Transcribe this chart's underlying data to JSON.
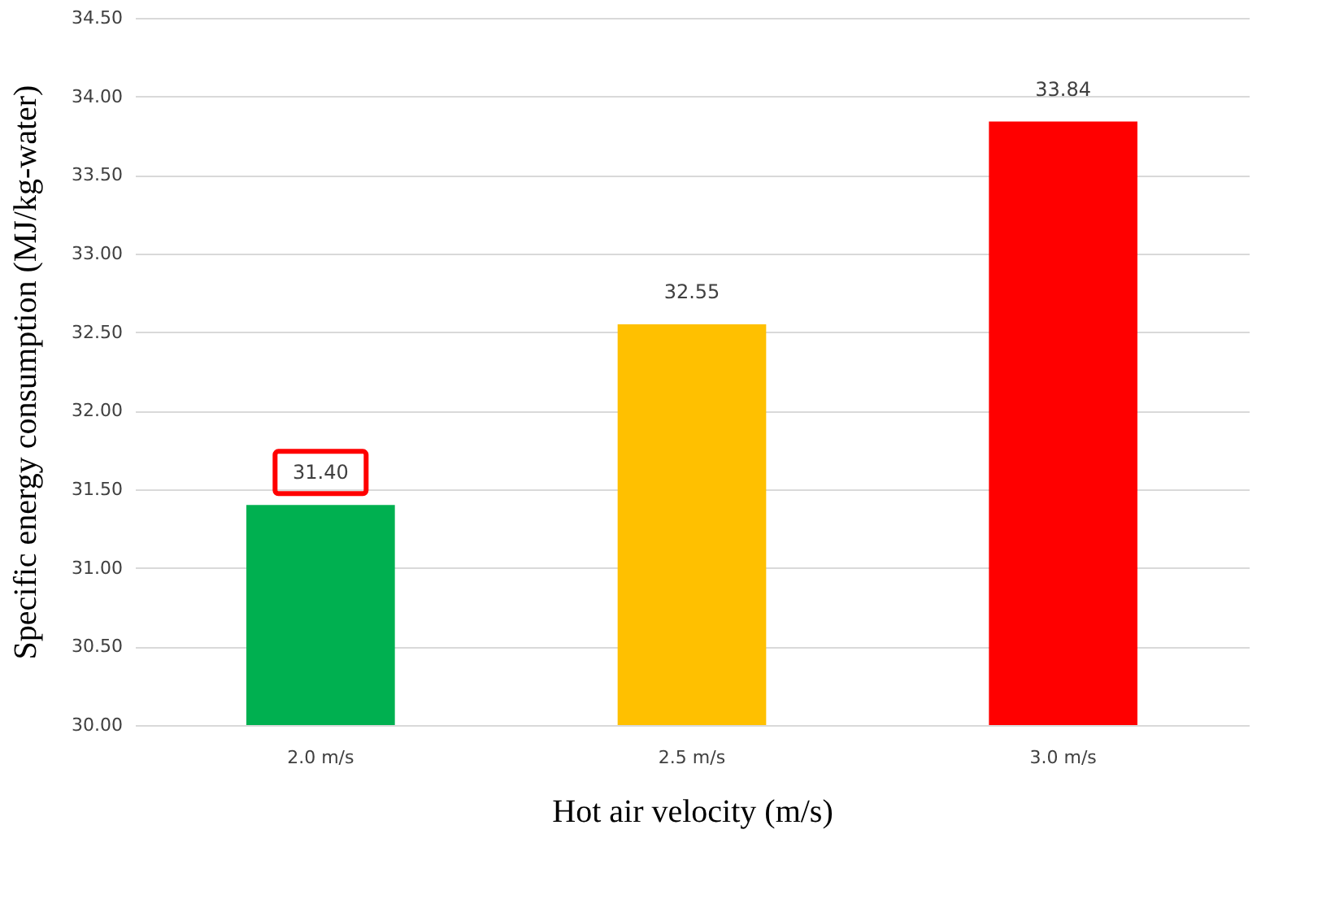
{
  "chart_data": {
    "type": "bar",
    "categories": [
      "2.0 m/s",
      "2.5 m/s",
      "3.0 m/s"
    ],
    "values": [
      31.4,
      32.55,
      33.84
    ],
    "colors": [
      "#00b050",
      "#ffc000",
      "#ff0000"
    ],
    "value_labels": [
      "31.40",
      "32.55",
      "33.84"
    ],
    "xlabel": "Hot air velocity (m/s)",
    "ylabel": "Specific energy consumption (MJ/kg-water)",
    "ylim": [
      30,
      34.5
    ],
    "yticks": [
      {
        "value": 30,
        "label": "30.00"
      },
      {
        "value": 30.5,
        "label": "30.50"
      },
      {
        "value": 31,
        "label": "31.00"
      },
      {
        "value": 31.5,
        "label": "31.50"
      },
      {
        "value": 32,
        "label": "32.00"
      },
      {
        "value": 32.5,
        "label": "32.50"
      },
      {
        "value": 33,
        "label": "33.00"
      },
      {
        "value": 33.5,
        "label": "33.50"
      },
      {
        "value": 34,
        "label": "34.00"
      },
      {
        "value": 34.5,
        "label": "34.50"
      }
    ],
    "grid": "y"
  }
}
